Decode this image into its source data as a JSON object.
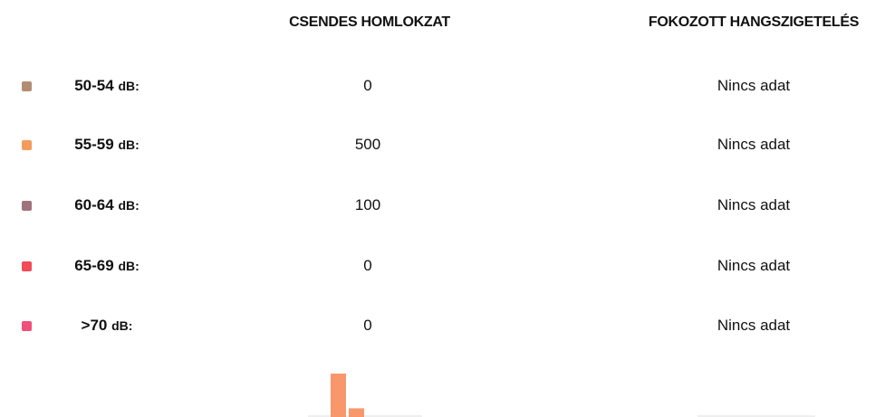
{
  "table": {
    "headers": [
      "CSENDES HOMLOKZAT",
      "FOKOZOTT HANGSZIGETELÉS"
    ],
    "unit": "dB:",
    "rows": [
      {
        "range": "50-54",
        "color": "#b38d72",
        "quiet": 0,
        "insulated": "Nincs adat"
      },
      {
        "range": "55-59",
        "color": "#f39b5c",
        "quiet": 500,
        "insulated": "Nincs adat"
      },
      {
        "range": "60-64",
        "color": "#a0727c",
        "quiet": 100,
        "insulated": "Nincs adat"
      },
      {
        "range": "65-69",
        "color": "#f14a58",
        "quiet": 0,
        "insulated": "Nincs adat"
      },
      {
        "range": ">70",
        "color": "#ef4f7a",
        "quiet": 0,
        "insulated": "Nincs adat"
      }
    ],
    "bar_color": "#f7976b"
  }
}
